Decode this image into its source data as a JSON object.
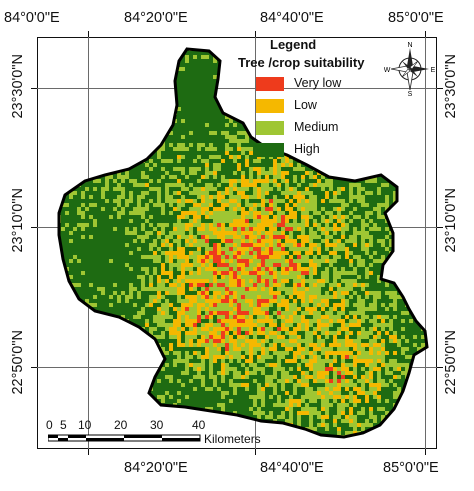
{
  "axes": {
    "top_ticks": [
      "84°0'0\"E",
      "84°20'0\"E",
      "84°40'0\"E",
      "85°0'0\"E"
    ],
    "bottom_ticks": [
      "84°20'0\"E",
      "84°40'0\"E",
      "85°0'0\"E"
    ],
    "left_ticks": [
      "23°30'0\"N",
      "23°10'0\"N",
      "22°50'0\"N"
    ],
    "right_ticks": [
      "23°30'0\"N",
      "23°10'0\"N",
      "22°50'0\"N"
    ]
  },
  "legend": {
    "title": "Legend",
    "subtitle": "Tree /crop suitability",
    "classes": [
      {
        "label": "Very low",
        "color": "#ee3b1c"
      },
      {
        "label": "Low",
        "color": "#f5b800"
      },
      {
        "label": "Medium",
        "color": "#9fc633"
      },
      {
        "label": "High",
        "color": "#1e6b12"
      }
    ]
  },
  "north_arrow": {
    "n": "N",
    "s": "S",
    "e": "E",
    "w": "W",
    "icon": "compass-rose-icon"
  },
  "scale_bar": {
    "labels": [
      "0",
      "5",
      "10",
      "20",
      "30",
      "40"
    ],
    "unit": "Kilometers"
  }
}
